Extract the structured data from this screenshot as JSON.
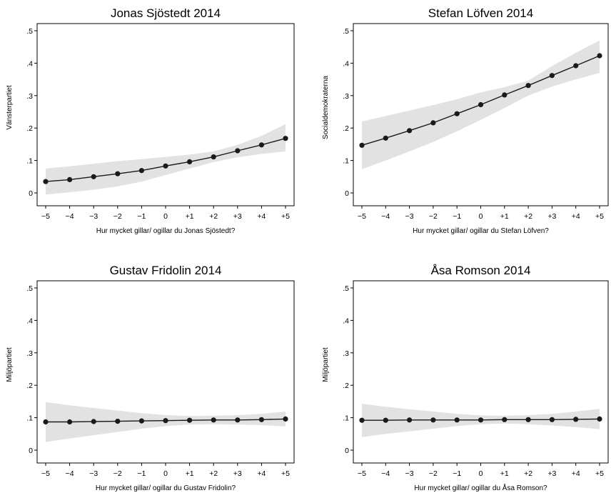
{
  "colors": {
    "line": "#1a1a1a",
    "band": "#e2e2e2",
    "axis": "#000000",
    "frame": "#000000"
  },
  "chart_data": [
    {
      "type": "line",
      "title": "Jonas Sjöstedt 2014",
      "xlabel": "Hur mycket gillar/ ogillar du Jonas Sjöstedt?",
      "ylabel": "Vänsterpartiet",
      "categories": [
        "−5",
        "−4",
        "−3",
        "−2",
        "−1",
        "0",
        "+1",
        "+2",
        "+3",
        "+4",
        "+5"
      ],
      "yticks": [
        "0",
        ".1",
        ".2",
        ".3",
        ".4",
        ".5"
      ],
      "ylim": [
        0,
        0.5
      ],
      "series": [
        {
          "values": [
            0.035,
            0.041,
            0.05,
            0.059,
            0.069,
            0.083,
            0.096,
            0.111,
            0.13,
            0.148,
            0.168
          ]
        }
      ],
      "ci_lower": [
        -0.005,
        0.002,
        0.01,
        0.02,
        0.035,
        0.055,
        0.075,
        0.095,
        0.11,
        0.12,
        0.128
      ],
      "ci_upper": [
        0.075,
        0.082,
        0.09,
        0.098,
        0.104,
        0.111,
        0.118,
        0.128,
        0.148,
        0.176,
        0.212
      ]
    },
    {
      "type": "line",
      "title": "Stefan Löfven 2014",
      "xlabel": "Hur mycket gillar/ ogillar du Stefan Löfven?",
      "ylabel": "Socialdemokraterna",
      "categories": [
        "−5",
        "−4",
        "−3",
        "−2",
        "−1",
        "0",
        "+1",
        "+2",
        "+3",
        "+4",
        "+5"
      ],
      "yticks": [
        "0",
        ".1",
        ".2",
        ".3",
        ".4",
        ".5"
      ],
      "ylim": [
        0,
        0.5
      ],
      "series": [
        {
          "values": [
            0.147,
            0.169,
            0.192,
            0.216,
            0.244,
            0.272,
            0.302,
            0.331,
            0.362,
            0.392,
            0.423
          ]
        }
      ],
      "ci_lower": [
        0.073,
        0.1,
        0.128,
        0.157,
        0.19,
        0.225,
        0.262,
        0.3,
        0.328,
        0.35,
        0.37
      ],
      "ci_upper": [
        0.22,
        0.237,
        0.254,
        0.271,
        0.289,
        0.31,
        0.326,
        0.346,
        0.391,
        0.432,
        0.47
      ]
    },
    {
      "type": "line",
      "title": "Gustav Fridolin 2014",
      "xlabel": "Hur mycket gillar/ ogillar du Gustav Fridolin?",
      "ylabel": "Miljöpartiet",
      "categories": [
        "−5",
        "−4",
        "−3",
        "−2",
        "−1",
        "0",
        "+1",
        "+2",
        "+3",
        "+4",
        "+5"
      ],
      "yticks": [
        "0",
        ".1",
        ".2",
        ".3",
        ".4",
        ".5"
      ],
      "ylim": [
        0,
        0.5
      ],
      "series": [
        {
          "values": [
            0.087,
            0.087,
            0.088,
            0.089,
            0.09,
            0.091,
            0.092,
            0.093,
            0.093,
            0.094,
            0.096
          ]
        }
      ],
      "ci_lower": [
        0.025,
        0.036,
        0.046,
        0.056,
        0.066,
        0.074,
        0.079,
        0.08,
        0.079,
        0.077,
        0.073
      ],
      "ci_upper": [
        0.148,
        0.138,
        0.13,
        0.122,
        0.114,
        0.108,
        0.105,
        0.106,
        0.108,
        0.112,
        0.119
      ]
    },
    {
      "type": "line",
      "title": "Åsa Romson 2014",
      "xlabel": "Hur mycket gillar/ ogillar du Åsa Romson?",
      "ylabel": "Miljöpartiet",
      "categories": [
        "−5",
        "−4",
        "−3",
        "−2",
        "−1",
        "0",
        "+1",
        "+2",
        "+3",
        "+4",
        "+5"
      ],
      "yticks": [
        "0",
        ".1",
        ".2",
        ".3",
        ".4",
        ".5"
      ],
      "ylim": [
        0,
        0.5
      ],
      "series": [
        {
          "values": [
            0.092,
            0.092,
            0.093,
            0.093,
            0.093,
            0.093,
            0.094,
            0.094,
            0.094,
            0.095,
            0.096
          ]
        }
      ],
      "ci_lower": [
        0.04,
        0.05,
        0.058,
        0.066,
        0.074,
        0.08,
        0.082,
        0.08,
        0.076,
        0.071,
        0.065
      ],
      "ci_upper": [
        0.143,
        0.134,
        0.126,
        0.119,
        0.112,
        0.107,
        0.106,
        0.108,
        0.112,
        0.119,
        0.127
      ]
    }
  ]
}
